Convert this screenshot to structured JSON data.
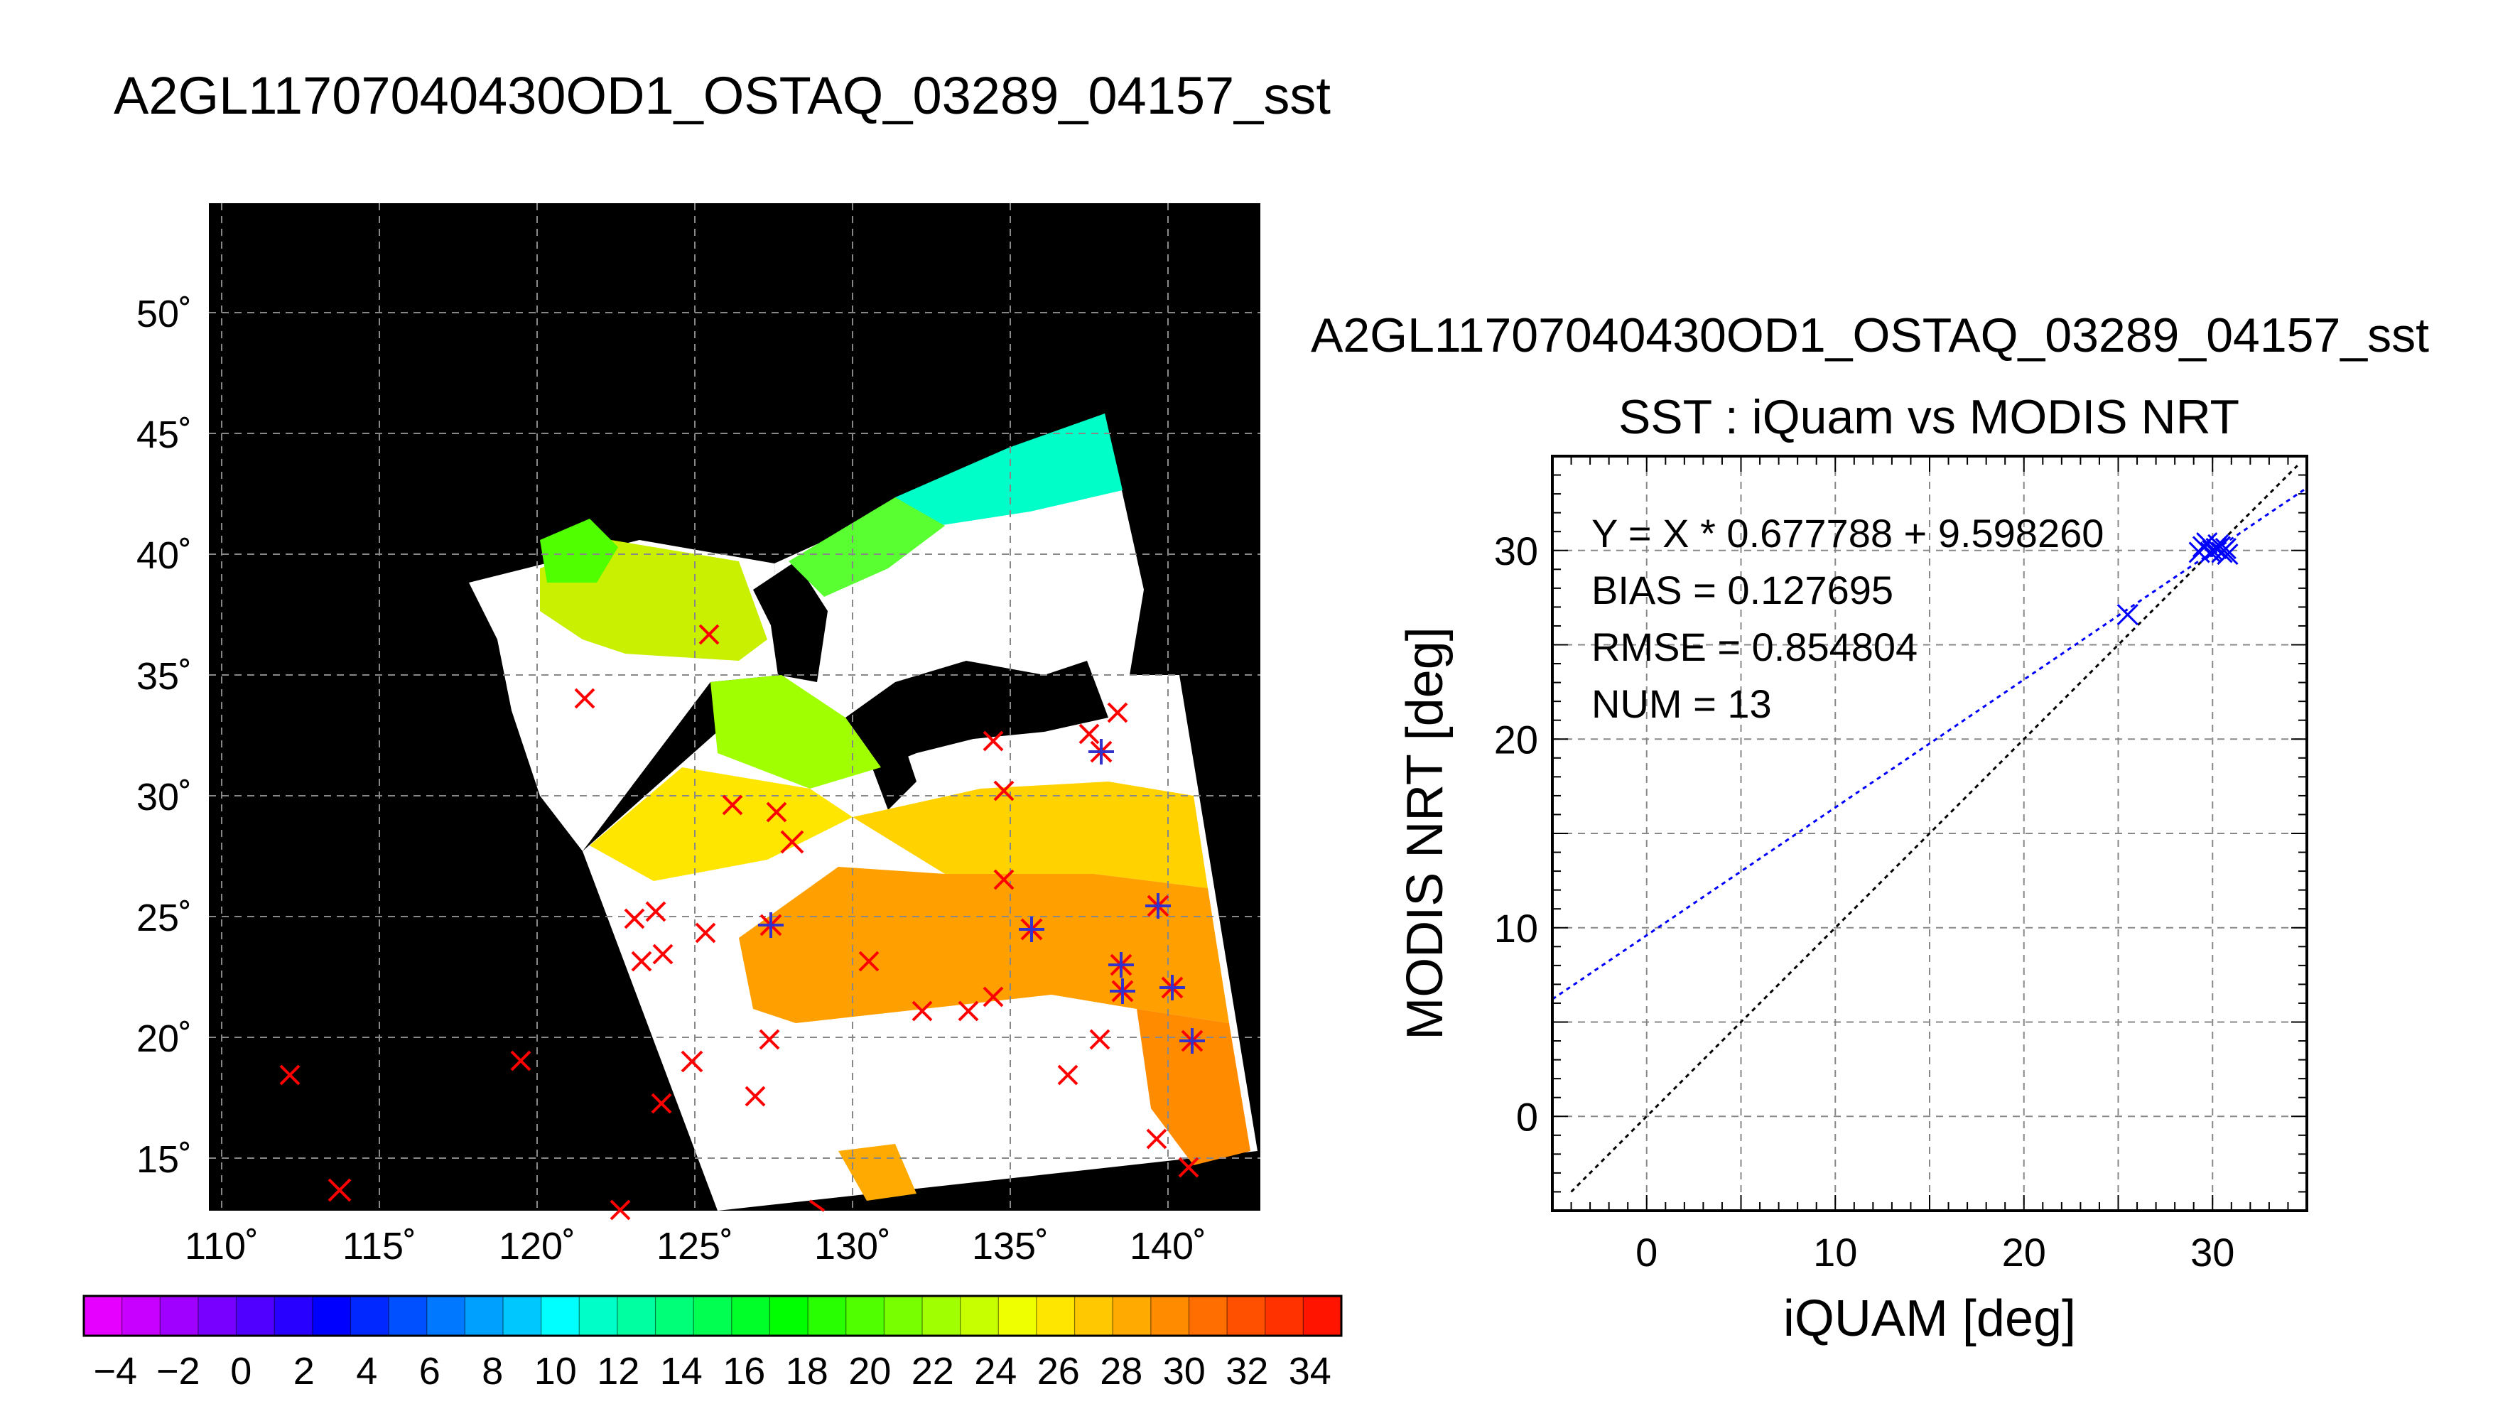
{
  "map": {
    "title": "A2GL11707040430OD1_OSTAQ_03289_04157_sst",
    "lon_ticks": [
      "110˚",
      "115˚",
      "120˚",
      "125˚",
      "130˚",
      "135˚",
      "140˚"
    ],
    "lat_ticks": [
      "15˚",
      "20˚",
      "25˚",
      "30˚",
      "35˚",
      "40˚",
      "45˚",
      "50˚"
    ],
    "background_color": "#000000",
    "swath_color": "#ffffff",
    "marker_colors": {
      "iquam": "#ff0000",
      "matchup": "#3333cc"
    }
  },
  "colorbar": {
    "labels": [
      "−4",
      "−2",
      "0",
      "2",
      "4",
      "6",
      "8",
      "10",
      "12",
      "14",
      "16",
      "18",
      "20",
      "22",
      "24",
      "26",
      "28",
      "30",
      "32",
      "34"
    ],
    "range": [
      -5,
      35
    ],
    "colors": [
      "#e600ff",
      "#c800ff",
      "#a000ff",
      "#7800ff",
      "#5000ff",
      "#2800ff",
      "#0000ff",
      "#0028ff",
      "#0050ff",
      "#0078ff",
      "#00a0ff",
      "#00c8ff",
      "#00ffff",
      "#00ffc8",
      "#00ffa0",
      "#00ff78",
      "#00ff50",
      "#00ff28",
      "#00ff00",
      "#28ff00",
      "#50ff00",
      "#78ff00",
      "#a0ff00",
      "#c8ff00",
      "#f0ff00",
      "#ffe600",
      "#ffc800",
      "#ffaa00",
      "#ff8c00",
      "#ff6e00",
      "#ff5000",
      "#ff3200",
      "#ff1400"
    ]
  },
  "chart_data": {
    "type": "scatter",
    "title": "A2GL11707040430OD1_OSTAQ_03289_04157_sst",
    "subtitle": "SST : iQuam vs MODIS NRT",
    "xlabel": "iQUAM [deg]",
    "ylabel": "MODIS NRT [deg]",
    "xlim": [
      -5,
      35
    ],
    "ylim": [
      -5,
      35
    ],
    "x_ticks": [
      "0",
      "10",
      "20",
      "30"
    ],
    "y_ticks": [
      "0",
      "10",
      "20",
      "30"
    ],
    "grid": true,
    "annotations": [
      "Y = X * 0.677788 + 9.598260",
      "BIAS = 0.127695",
      "RMSE = 0.854804",
      "NUM = 13"
    ],
    "points": [
      {
        "x": 25.5,
        "y": 26.6
      },
      {
        "x": 29.3,
        "y": 29.9
      },
      {
        "x": 29.5,
        "y": 30.2
      },
      {
        "x": 29.7,
        "y": 30.4
      },
      {
        "x": 30.0,
        "y": 30.0
      },
      {
        "x": 30.2,
        "y": 30.1
      },
      {
        "x": 30.3,
        "y": 30.3
      },
      {
        "x": 30.5,
        "y": 29.9
      },
      {
        "x": 30.6,
        "y": 30.0
      },
      {
        "x": 30.7,
        "y": 30.1
      },
      {
        "x": 30.8,
        "y": 29.8
      },
      {
        "x": 29.9,
        "y": 29.9
      },
      {
        "x": 30.4,
        "y": 30.2
      }
    ],
    "fit_line": {
      "slope": 0.677788,
      "intercept": 9.59826,
      "color": "#0000ff"
    },
    "identity_line": {
      "color": "#000000"
    },
    "marker_color": "#0000ff"
  }
}
